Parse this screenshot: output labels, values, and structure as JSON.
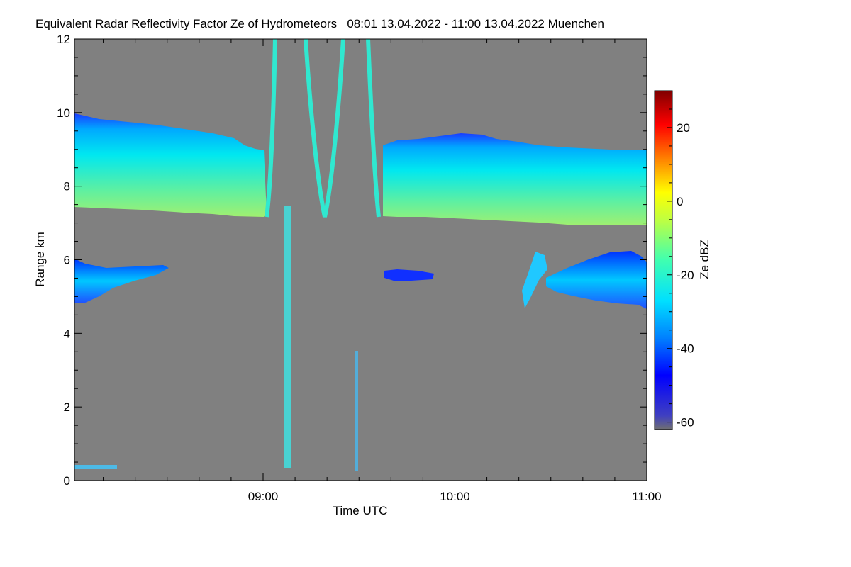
{
  "chart_data": {
    "type": "heatmap",
    "title": "Equivalent Radar Reflectivity Factor Ze of Hydrometeors   08:01 13.04.2022 - 11:00 13.04.2022 Muenchen",
    "xlabel": "Time UTC",
    "ylabel": "Range km",
    "x_range_hours": [
      8.0167,
      11.0
    ],
    "y_range_km": [
      0,
      12
    ],
    "x_ticks": [
      {
        "value": 9.0,
        "label": "09:00"
      },
      {
        "value": 10.0,
        "label": "10:00"
      },
      {
        "value": 11.0,
        "label": "11:00"
      }
    ],
    "y_ticks": [
      {
        "value": 0,
        "label": "0"
      },
      {
        "value": 2,
        "label": "2"
      },
      {
        "value": 4,
        "label": "4"
      },
      {
        "value": 6,
        "label": "6"
      },
      {
        "value": 8,
        "label": "8"
      },
      {
        "value": 10,
        "label": "10"
      },
      {
        "value": 12,
        "label": "12"
      }
    ],
    "colorbar": {
      "label": "Ze dBZ",
      "range": [
        -62,
        30
      ],
      "ticks": [
        {
          "value": 20,
          "label": "20"
        },
        {
          "value": 0,
          "label": "0"
        },
        {
          "value": -20,
          "label": "-20"
        },
        {
          "value": -40,
          "label": "-40"
        },
        {
          "value": -60,
          "label": "-60"
        }
      ]
    },
    "background_color": "#808080",
    "features": [
      {
        "name": "upper-cirrus-left",
        "t_start": 8.017,
        "t_end": 9.0,
        "bottom_km": 7.3,
        "top_km": 9.7,
        "ze_dbz": -22
      },
      {
        "name": "upper-cirrus-right",
        "t_start": 9.62,
        "t_end": 11.0,
        "bottom_km": 7.0,
        "top_km": 9.3,
        "ze_dbz": -24
      },
      {
        "name": "mid-layer-left",
        "t_start": 8.017,
        "t_end": 8.5,
        "bottom_km": 4.9,
        "top_km": 5.9,
        "ze_dbz": -28
      },
      {
        "name": "mid-layer-small",
        "t_start": 9.64,
        "t_end": 9.9,
        "bottom_km": 5.4,
        "top_km": 5.7,
        "ze_dbz": -45
      },
      {
        "name": "mid-layer-right",
        "t_start": 10.55,
        "t_end": 11.0,
        "bottom_km": 4.9,
        "top_km": 6.2,
        "ze_dbz": -40
      },
      {
        "name": "insect-column",
        "t_start": 9.12,
        "t_end": 9.15,
        "bottom_km": 0.3,
        "top_km": 7.5,
        "ze_dbz": -15
      }
    ]
  }
}
